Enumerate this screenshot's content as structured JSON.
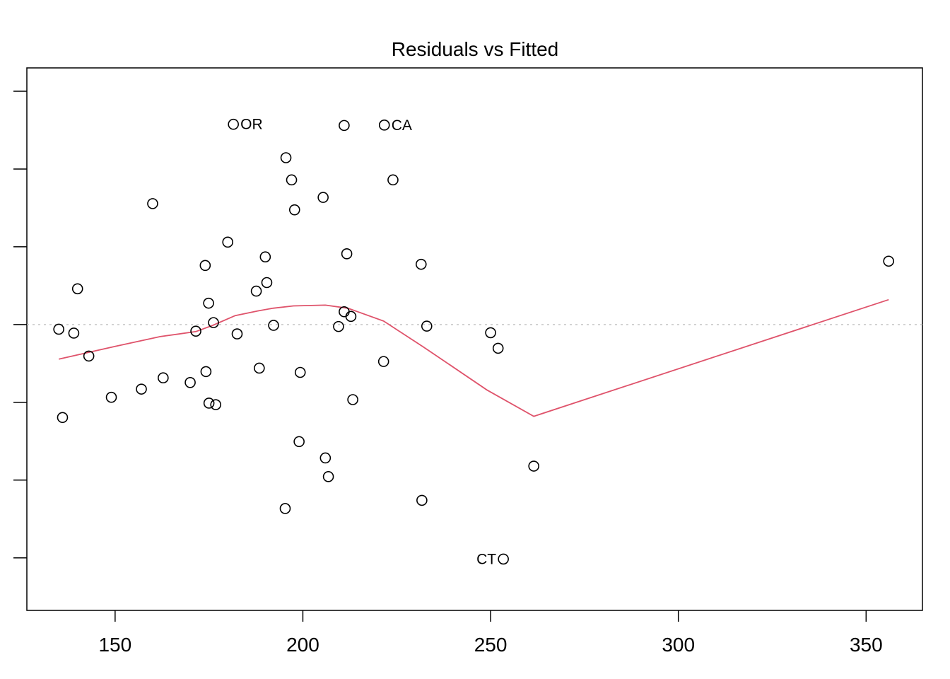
{
  "chart_data": {
    "type": "scatter",
    "title": "Residuals vs Fitted",
    "xlabel": "",
    "ylabel": "",
    "xlim": [
      126.5,
      365.0
    ],
    "ylim": [
      -7.35,
      6.6
    ],
    "x_ticks": [
      150,
      200,
      250,
      300,
      350
    ],
    "y_tick_values": [
      -6,
      -4,
      -2,
      0,
      2,
      4,
      6
    ],
    "grid": false,
    "zero_line": true,
    "colors": {
      "points": "#000000",
      "smooth": "#DF536B",
      "zero_line": "#BEBEBE"
    },
    "points": [
      {
        "x": 181.5,
        "y": 5.15,
        "label": "OR",
        "label_side": "right"
      },
      {
        "x": 211.0,
        "y": 5.12
      },
      {
        "x": 221.7,
        "y": 5.13,
        "label": "CA",
        "label_side": "right"
      },
      {
        "x": 195.5,
        "y": 4.29
      },
      {
        "x": 197.0,
        "y": 3.72
      },
      {
        "x": 224.0,
        "y": 3.72
      },
      {
        "x": 205.4,
        "y": 3.27
      },
      {
        "x": 160.0,
        "y": 3.11
      },
      {
        "x": 197.8,
        "y": 2.95
      },
      {
        "x": 180.0,
        "y": 2.12
      },
      {
        "x": 190.0,
        "y": 1.74
      },
      {
        "x": 211.7,
        "y": 1.82
      },
      {
        "x": 174.0,
        "y": 1.52
      },
      {
        "x": 231.5,
        "y": 1.55
      },
      {
        "x": 356.0,
        "y": 1.63
      },
      {
        "x": 140.0,
        "y": 0.92
      },
      {
        "x": 190.4,
        "y": 1.08
      },
      {
        "x": 187.6,
        "y": 0.86
      },
      {
        "x": 174.9,
        "y": 0.55
      },
      {
        "x": 211.0,
        "y": 0.33
      },
      {
        "x": 212.8,
        "y": 0.21
      },
      {
        "x": 176.2,
        "y": 0.05
      },
      {
        "x": 192.2,
        "y": -0.02
      },
      {
        "x": 209.5,
        "y": -0.05
      },
      {
        "x": 233.0,
        "y": -0.04
      },
      {
        "x": 135.0,
        "y": -0.12
      },
      {
        "x": 139.0,
        "y": -0.22
      },
      {
        "x": 171.5,
        "y": -0.17
      },
      {
        "x": 182.5,
        "y": -0.24
      },
      {
        "x": 250.0,
        "y": -0.21
      },
      {
        "x": 252.0,
        "y": -0.61
      },
      {
        "x": 143.0,
        "y": -0.81
      },
      {
        "x": 221.5,
        "y": -0.95
      },
      {
        "x": 188.4,
        "y": -1.12
      },
      {
        "x": 174.2,
        "y": -1.21
      },
      {
        "x": 199.3,
        "y": -1.23
      },
      {
        "x": 162.8,
        "y": -1.37
      },
      {
        "x": 170.0,
        "y": -1.49
      },
      {
        "x": 157.0,
        "y": -1.66
      },
      {
        "x": 149.0,
        "y": -1.87
      },
      {
        "x": 175.0,
        "y": -2.02
      },
      {
        "x": 176.8,
        "y": -2.06
      },
      {
        "x": 213.3,
        "y": -1.93
      },
      {
        "x": 136.0,
        "y": -2.39
      },
      {
        "x": 199.0,
        "y": -3.01
      },
      {
        "x": 206.0,
        "y": -3.43
      },
      {
        "x": 206.8,
        "y": -3.91
      },
      {
        "x": 261.5,
        "y": -3.64
      },
      {
        "x": 231.7,
        "y": -4.52
      },
      {
        "x": 195.3,
        "y": -4.73
      },
      {
        "x": 253.4,
        "y": -6.03,
        "label": "CT",
        "label_side": "left"
      }
    ],
    "smooth_line": [
      [
        135.0,
        -0.89
      ],
      [
        140.0,
        -0.78
      ],
      [
        150.0,
        -0.56
      ],
      [
        162.0,
        -0.31
      ],
      [
        171.5,
        -0.18
      ],
      [
        176.0,
        -0.02
      ],
      [
        182.0,
        0.23
      ],
      [
        188.0,
        0.35
      ],
      [
        192.0,
        0.42
      ],
      [
        197.5,
        0.48
      ],
      [
        206.0,
        0.5
      ],
      [
        212.0,
        0.42
      ],
      [
        221.5,
        0.09
      ],
      [
        232.0,
        -0.57
      ],
      [
        249.0,
        -1.68
      ],
      [
        261.5,
        -2.36
      ],
      [
        356.0,
        0.64
      ]
    ]
  }
}
